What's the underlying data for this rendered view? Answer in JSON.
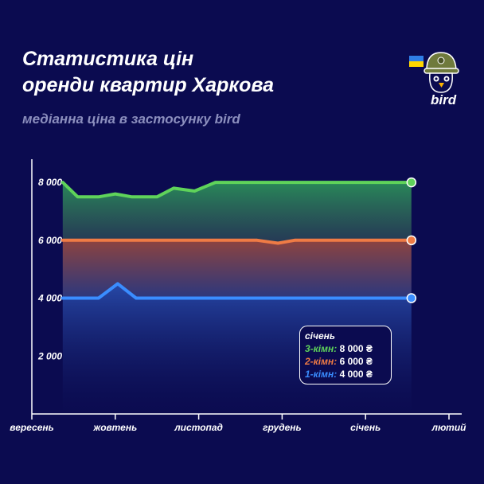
{
  "header": {
    "title_line1": "Статистика цін",
    "title_line2": "оренди квартир Харкова",
    "subtitle": "медіанна ціна в застосунку bird"
  },
  "brand": {
    "logo_text": "bird",
    "logo_icon": "bird-helmet-icon",
    "flag_icon": "ukraine-flag-icon"
  },
  "colors": {
    "background": "#0b0b50",
    "three_room": "#5fd35a",
    "two_room": "#ef7b45",
    "one_room": "#3a8dff",
    "muted_text": "#8c8fbe"
  },
  "chart_data": {
    "type": "area",
    "title": "",
    "xlabel": "",
    "ylabel": "",
    "x_ticks": [
      "вересень",
      "жовтень",
      "листопад",
      "грудень",
      "січень",
      "лютий"
    ],
    "y_ticks": [
      "2 000",
      "4 000",
      "6 000",
      "8 000"
    ],
    "y_tick_values": [
      2000,
      4000,
      6000,
      8000
    ],
    "ylim": [
      0,
      8800
    ],
    "xlim": [
      0,
      5
    ],
    "grid": false,
    "legend_position": "bottom-right",
    "series": [
      {
        "name": "3-кімн",
        "color": "#5fd35a",
        "points": [
          [
            0.37,
            8000
          ],
          [
            0.55,
            7500
          ],
          [
            0.8,
            7500
          ],
          [
            1.0,
            7600
          ],
          [
            1.2,
            7500
          ],
          [
            1.5,
            7500
          ],
          [
            1.7,
            7800
          ],
          [
            1.95,
            7700
          ],
          [
            2.2,
            8000
          ],
          [
            3.0,
            8000
          ],
          [
            4.0,
            8000
          ],
          [
            4.55,
            8000
          ]
        ]
      },
      {
        "name": "2-кімн",
        "color": "#ef7b45",
        "points": [
          [
            0.37,
            6000
          ],
          [
            1.0,
            6000
          ],
          [
            2.0,
            6000
          ],
          [
            2.7,
            6000
          ],
          [
            2.95,
            5900
          ],
          [
            3.15,
            6000
          ],
          [
            4.0,
            6000
          ],
          [
            4.55,
            6000
          ]
        ]
      },
      {
        "name": "1-кімн",
        "color": "#3a8dff",
        "points": [
          [
            0.37,
            4000
          ],
          [
            0.8,
            4000
          ],
          [
            1.03,
            4500
          ],
          [
            1.25,
            4000
          ],
          [
            2.0,
            4000
          ],
          [
            3.0,
            4000
          ],
          [
            4.0,
            4000
          ],
          [
            4.55,
            4000
          ]
        ]
      }
    ],
    "annotation": {
      "month": "січень",
      "rows": [
        {
          "label": "3-кімн:",
          "value": "8 000 ₴"
        },
        {
          "label": "2-кімн:",
          "value": "6 000 ₴"
        },
        {
          "label": "1-кімн:",
          "value": "4 000 ₴"
        }
      ]
    }
  }
}
